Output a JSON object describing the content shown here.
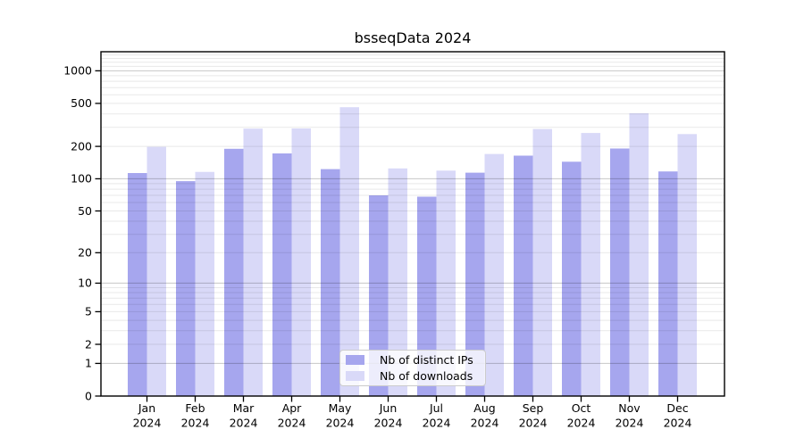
{
  "chart_data": {
    "type": "bar",
    "title": "bsseqData 2024",
    "categories": [
      "Jan",
      "Feb",
      "Mar",
      "Apr",
      "May",
      "Jun",
      "Jul",
      "Aug",
      "Sep",
      "Oct",
      "Nov",
      "Dec"
    ],
    "year_label": "2024",
    "series": [
      {
        "name": "Nb of distinct IPs",
        "color": "#a6a6ee",
        "values": [
          113,
          95,
          190,
          172,
          123,
          70,
          68,
          114,
          164,
          144,
          191,
          117
        ]
      },
      {
        "name": "Nb of downloads",
        "color": "#d9d9f8",
        "values": [
          198,
          116,
          292,
          293,
          461,
          125,
          119,
          170,
          290,
          266,
          405,
          260
        ]
      }
    ],
    "y_ticks": [
      0,
      1,
      2,
      5,
      10,
      20,
      50,
      100,
      200,
      500,
      1000
    ],
    "y_scale": "log10(value+1)",
    "ylim": [
      0,
      1500
    ],
    "grid": true,
    "legend_position": "inside-bottom-center",
    "axis_color": "#000000",
    "grid_minor_color": "rgba(0,0,0,0.09)",
    "grid_major_color": "rgba(0,0,0,0.22)"
  }
}
